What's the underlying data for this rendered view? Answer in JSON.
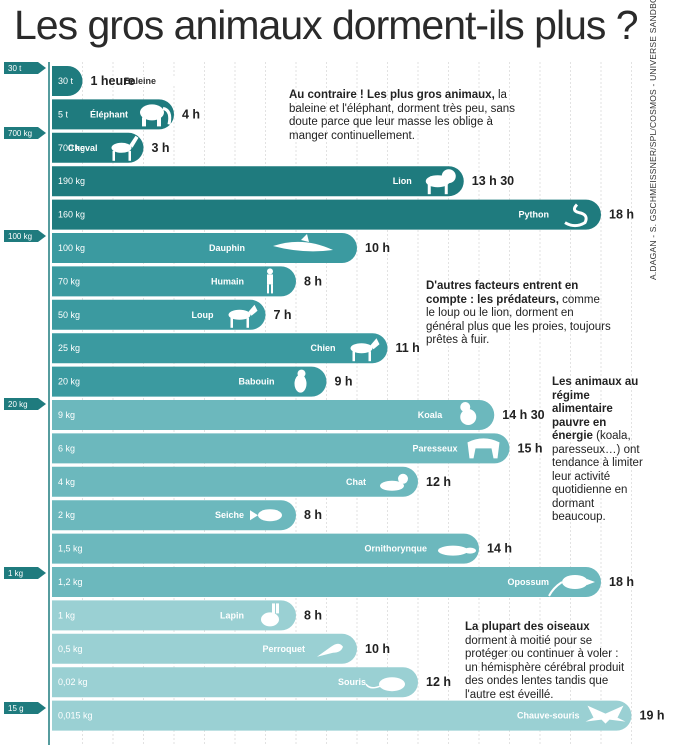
{
  "title": "Les gros animaux dorment-ils plus ?",
  "credit": "A.DAGAN - S. GSCHMEISSNER/SPL/COSMOS - UNIVERSE SANDBOX",
  "colors": {
    "dark": "#1f7b7e",
    "mid": "#3b9aa0",
    "light": "#6cb8bd",
    "pale": "#9ad0d3",
    "axis": "#1f7b7e"
  },
  "notes": {
    "note1_bold": "Au contraire ! Les plus gros animaux,",
    "note1_text": "la baleine et l'éléphant, dorment très peu, sans doute parce que leur masse les oblige à manger continuellement.",
    "note2_bold": "D'autres facteurs entrent en compte : les prédateurs,",
    "note2_text": "comme le loup ou le lion, dorment en général plus que les proies, toujours prêtes à fuir.",
    "note3_bold": "Les animaux au régime alimentaire pauvre en énergie",
    "note3_text": "(koala, paresseux…) ont tendance à limiter leur activité quotidienne en dormant beaucoup.",
    "note4_bold": "La plupart des oiseaux",
    "note4_text": "dorment à moitié pour se protéger ou continuer à voler : un hémisphère cérébral produit des ondes lentes tandis que l'autre est éveillé."
  },
  "chart_data": {
    "type": "bar",
    "orientation": "horizontal",
    "title": "Les gros animaux dorment-ils plus ?",
    "value_unit": "h",
    "xlim": [
      0,
      24
    ],
    "weight_axis_ticks": [
      "30 t",
      "700 kg",
      "100 kg",
      "20 kg",
      "1 kg",
      "15 g"
    ],
    "animals": [
      {
        "name": "Baleine",
        "weight": "30 t",
        "hours": 1,
        "hours_label": "1 heure",
        "color": "dark",
        "icon": "whale-icon"
      },
      {
        "name": "Éléphant",
        "weight": "5 t",
        "hours": 4,
        "hours_label": "4 h",
        "color": "dark",
        "icon": "elephant-icon"
      },
      {
        "name": "Cheval",
        "weight": "700 kg",
        "hours": 3,
        "hours_label": "3 h",
        "color": "dark",
        "icon": "horse-icon"
      },
      {
        "name": "Lion",
        "weight": "190 kg",
        "hours": 13.5,
        "hours_label": "13 h 30",
        "color": "dark",
        "icon": "lion-icon"
      },
      {
        "name": "Python",
        "weight": "160 kg",
        "hours": 18,
        "hours_label": "18 h",
        "color": "dark",
        "icon": "snake-icon"
      },
      {
        "name": "Dauphin",
        "weight": "100 kg",
        "hours": 10,
        "hours_label": "10 h",
        "color": "mid",
        "icon": "dolphin-icon"
      },
      {
        "name": "Humain",
        "weight": "70 kg",
        "hours": 8,
        "hours_label": "8 h",
        "color": "mid",
        "icon": "human-icon"
      },
      {
        "name": "Loup",
        "weight": "50 kg",
        "hours": 7,
        "hours_label": "7 h",
        "color": "mid",
        "icon": "wolf-icon"
      },
      {
        "name": "Chien",
        "weight": "25 kg",
        "hours": 11,
        "hours_label": "11 h",
        "color": "mid",
        "icon": "dog-icon"
      },
      {
        "name": "Babouin",
        "weight": "20 kg",
        "hours": 9,
        "hours_label": "9 h",
        "color": "mid",
        "icon": "baboon-icon"
      },
      {
        "name": "Koala",
        "weight": "9 kg",
        "hours": 14.5,
        "hours_label": "14 h 30",
        "color": "light",
        "icon": "koala-icon"
      },
      {
        "name": "Paresseux",
        "weight": "6 kg",
        "hours": 15,
        "hours_label": "15 h",
        "color": "light",
        "icon": "sloth-icon"
      },
      {
        "name": "Chat",
        "weight": "4 kg",
        "hours": 12,
        "hours_label": "12 h",
        "color": "light",
        "icon": "cat-icon"
      },
      {
        "name": "Seiche",
        "weight": "2 kg",
        "hours": 8,
        "hours_label": "8 h",
        "color": "light",
        "icon": "cuttlefish-icon"
      },
      {
        "name": "Ornithorynque",
        "weight": "1,5 kg",
        "hours": 14,
        "hours_label": "14 h",
        "color": "light",
        "icon": "platypus-icon"
      },
      {
        "name": "Opossum",
        "weight": "1,2 kg",
        "hours": 18,
        "hours_label": "18 h",
        "color": "light",
        "icon": "opossum-icon"
      },
      {
        "name": "Lapin",
        "weight": "1 kg",
        "hours": 8,
        "hours_label": "8 h",
        "color": "pale",
        "icon": "rabbit-icon"
      },
      {
        "name": "Perroquet",
        "weight": "0,5 kg",
        "hours": 10,
        "hours_label": "10 h",
        "color": "pale",
        "icon": "parrot-icon"
      },
      {
        "name": "Souris",
        "weight": "0,02 kg",
        "hours": 12,
        "hours_label": "12 h",
        "color": "pale",
        "icon": "mouse-icon"
      },
      {
        "name": "Chauve-souris",
        "weight": "0,015 kg",
        "hours": 19,
        "hours_label": "19 h",
        "color": "pale",
        "icon": "bat-icon"
      }
    ]
  }
}
